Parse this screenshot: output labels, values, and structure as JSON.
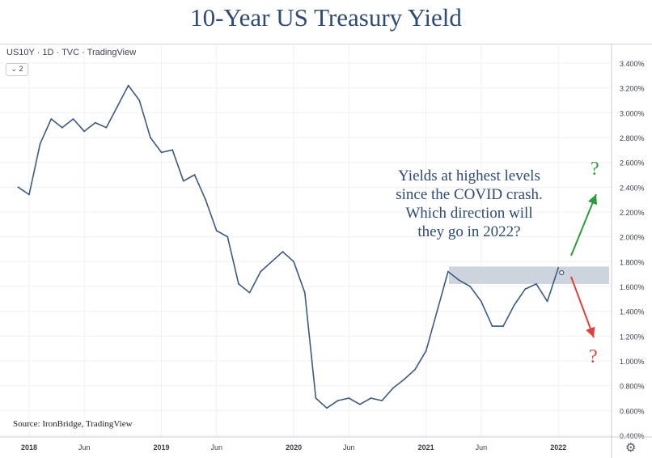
{
  "title": "10-Year US Treasury Yield",
  "symbol_line": "US10Y · 1D · TVC · TradingView",
  "collapse_label": "⌄ 2",
  "annotation_lines": [
    "Yields at highest levels",
    "since the COVID crash.",
    "Which direction will",
    "they go in 2022?"
  ],
  "question_up": "?",
  "question_down": "?",
  "source": "Source: IronBridge, TradingView",
  "settings_icon": "⚙",
  "colors": {
    "line": "#3d5a80",
    "band": "#c5ccd8",
    "up_arrow": "#2e9b3c",
    "down_arrow": "#e0403a",
    "title": "#2f4b72"
  },
  "chart_data": {
    "type": "line",
    "title": "10-Year US Treasury Yield",
    "ylabel": "",
    "y_unit": "%",
    "ylim": [
      0.35,
      3.5
    ],
    "y_ticks": [
      "3.400%",
      "3.200%",
      "3.000%",
      "2.800%",
      "2.600%",
      "2.400%",
      "2.200%",
      "2.000%",
      "1.800%",
      "1.600%",
      "1.400%",
      "1.200%",
      "1.000%",
      "0.800%",
      "0.600%",
      "0.400%"
    ],
    "x_ticks": [
      "2018",
      "Jun",
      "2019",
      "Jun",
      "2020",
      "Jun",
      "2021",
      "Jun",
      "2022"
    ],
    "x": [
      "2017-12",
      "2018-01",
      "2018-02",
      "2018-03",
      "2018-04",
      "2018-05",
      "2018-06",
      "2018-07",
      "2018-08",
      "2018-09",
      "2018-10",
      "2018-11",
      "2018-12",
      "2019-01",
      "2019-02",
      "2019-03",
      "2019-04",
      "2019-05",
      "2019-06",
      "2019-07",
      "2019-08",
      "2019-09",
      "2019-10",
      "2019-11",
      "2019-12",
      "2020-01",
      "2020-02",
      "2020-03",
      "2020-04",
      "2020-05",
      "2020-06",
      "2020-07",
      "2020-08",
      "2020-09",
      "2020-10",
      "2020-11",
      "2020-12",
      "2021-01",
      "2021-02",
      "2021-03",
      "2021-04",
      "2021-05",
      "2021-06",
      "2021-07",
      "2021-08",
      "2021-09",
      "2021-10",
      "2021-11",
      "2021-12",
      "2022-01"
    ],
    "series": [
      {
        "values": [
          2.4,
          2.34,
          2.75,
          2.95,
          2.88,
          2.95,
          2.85,
          2.92,
          2.88,
          3.05,
          3.22,
          3.1,
          2.8,
          2.68,
          2.7,
          2.45,
          2.5,
          2.3,
          2.05,
          2.0,
          1.62,
          1.55,
          1.72,
          1.8,
          1.88,
          1.8,
          1.55,
          0.7,
          0.62,
          0.68,
          0.7,
          0.65,
          0.7,
          0.68,
          0.78,
          0.85,
          0.93,
          1.08,
          1.4,
          1.72,
          1.65,
          1.6,
          1.48,
          1.28,
          1.28,
          1.45,
          1.58,
          1.62,
          1.48,
          1.75
        ]
      }
    ],
    "highlight_band": [
      1.62,
      1.76
    ],
    "grid": true
  }
}
